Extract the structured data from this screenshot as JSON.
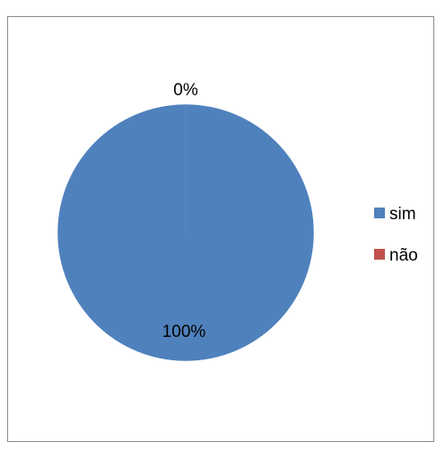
{
  "chart_data": {
    "type": "pie",
    "title": "",
    "categories": [
      "sim",
      "não"
    ],
    "values": [
      100,
      0
    ],
    "data_labels": [
      "100%",
      "0%"
    ],
    "colors": [
      "#4f81bd",
      "#c0504d"
    ],
    "legend": {
      "position": "right",
      "entries": [
        "sim",
        "não"
      ]
    }
  }
}
